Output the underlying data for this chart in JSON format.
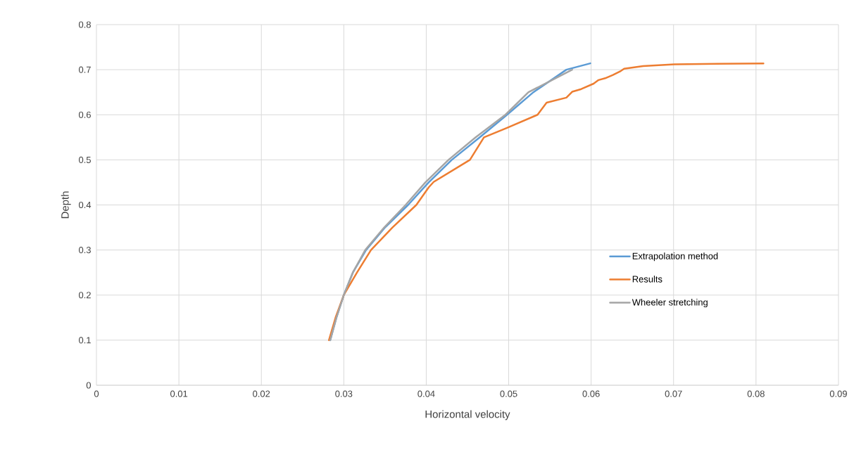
{
  "chart_data": {
    "type": "line",
    "xlabel": "Horizontal velocity",
    "ylabel": "Depth",
    "xlim": [
      0,
      0.09
    ],
    "xticks": [
      0,
      0.01,
      0.02,
      0.03,
      0.04,
      0.05,
      0.06,
      0.07,
      0.08,
      0.09
    ],
    "ylim": [
      0,
      0.8
    ],
    "yticks": [
      0,
      0.1,
      0.2,
      0.3,
      0.4,
      0.5,
      0.6,
      0.7,
      0.8
    ],
    "grid": true,
    "legend": "right",
    "marker": "none",
    "line_style": "solid",
    "series": [
      {
        "name": "Extrapolation method",
        "color": "#5b9bd5",
        "x": [
          0.02835,
          0.0291,
          0.03,
          0.0311,
          0.0327,
          0.035,
          0.0378,
          0.0403,
          0.0431,
          0.0465,
          0.0498,
          0.053,
          0.057,
          0.0599
        ],
        "values": [
          0.1,
          0.15,
          0.2,
          0.25,
          0.3,
          0.35,
          0.4,
          0.45,
          0.5,
          0.55,
          0.6,
          0.65,
          0.7,
          0.714
        ]
      },
      {
        "name": "Results",
        "color": "#ed7d31",
        "x": [
          0.0282,
          0.029,
          0.03,
          0.0316,
          0.0333,
          0.0359,
          0.0388,
          0.0403,
          0.0409,
          0.0453,
          0.047,
          0.0498,
          0.0535,
          0.0546,
          0.057,
          0.0577,
          0.0588,
          0.0603,
          0.0609,
          0.0617,
          0.0626,
          0.0635,
          0.064,
          0.0663,
          0.0701,
          0.0809
        ],
        "values": [
          0.1,
          0.15,
          0.2,
          0.25,
          0.3,
          0.35,
          0.4,
          0.439,
          0.451,
          0.5,
          0.55,
          0.571,
          0.6,
          0.627,
          0.638,
          0.651,
          0.657,
          0.669,
          0.677,
          0.681,
          0.688,
          0.696,
          0.702,
          0.708,
          0.712,
          0.714
        ]
      },
      {
        "name": "Wheeler stretching",
        "color": "#a5a5a5",
        "x": [
          0.02835,
          0.0291,
          0.03,
          0.0311,
          0.0326,
          0.0349,
          0.0375,
          0.0399,
          0.0427,
          0.046,
          0.0496,
          0.0524,
          0.0577
        ],
        "values": [
          0.1,
          0.15,
          0.2,
          0.25,
          0.3,
          0.35,
          0.4,
          0.45,
          0.5,
          0.55,
          0.6,
          0.65,
          0.7
        ]
      }
    ]
  }
}
